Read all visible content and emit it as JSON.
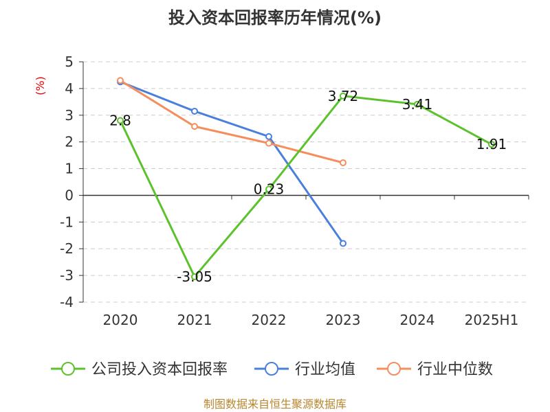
{
  "title": "投入资本回报率历年情况(%)",
  "source": "制图数据来自恒生聚源数据库",
  "chart_data": {
    "type": "line",
    "title": "投入资本回报率历年情况(%)",
    "ylabel": "(%)",
    "xlabel": "",
    "categories": [
      "2020",
      "2021",
      "2022",
      "2023",
      "2024",
      "2025H1"
    ],
    "ylim": [
      -4,
      5
    ],
    "yticks": [
      5,
      4,
      3,
      2,
      1,
      0,
      -1,
      -2,
      -3,
      -4
    ],
    "grid": true,
    "legend_position": "bottom",
    "series": [
      {
        "name": "公司投入资本回报率",
        "color": "#5cc22c",
        "values": [
          2.8,
          -3.05,
          0.23,
          3.72,
          3.41,
          1.91
        ],
        "labels": [
          "2.8",
          "-3.05",
          "0.23",
          "3.72",
          "3.41",
          "1.91"
        ]
      },
      {
        "name": "行业均值",
        "color": "#4a7fdb",
        "values": [
          4.25,
          3.15,
          2.2,
          -1.8,
          null,
          null
        ]
      },
      {
        "name": "行业中位数",
        "color": "#f58d5c",
        "values": [
          4.3,
          2.58,
          1.95,
          1.22,
          null,
          null
        ]
      }
    ]
  }
}
